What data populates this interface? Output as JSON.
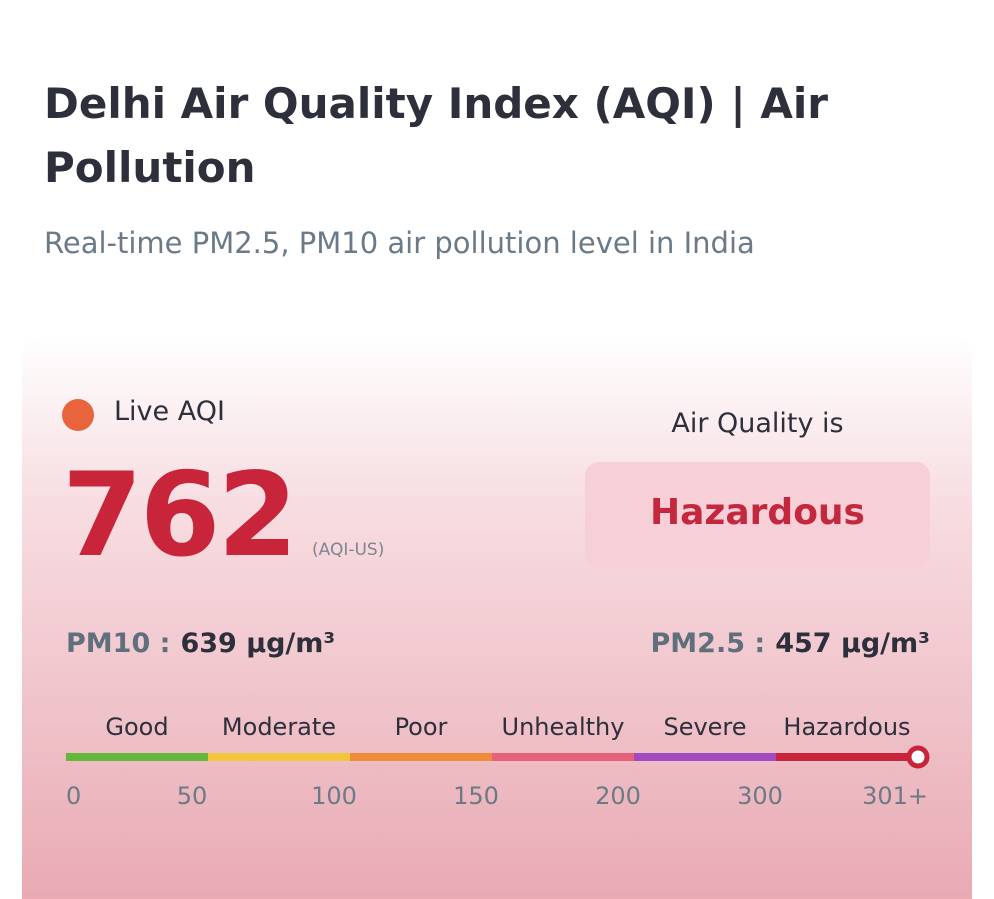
{
  "header": {
    "title": "Delhi Air Quality Index (AQI) | Air Pollution",
    "subtitle": "Real-time PM2.5, PM10 air pollution level in India"
  },
  "card": {
    "live_label": "Live AQI",
    "aqi": 762,
    "aqi_unit": "(AQI-US)",
    "status_label": "Air Quality is",
    "status": "Hazardous",
    "pm10": {
      "label": "PM10 :",
      "value": 639,
      "unit": "µg/m³"
    },
    "pm25": {
      "label": "PM2.5 :",
      "value": 457,
      "unit": "µg/m³"
    },
    "scale": {
      "levels": [
        {
          "name": "Good",
          "color": "#63b83a"
        },
        {
          "name": "Moderate",
          "color": "#f2c63a"
        },
        {
          "name": "Poor",
          "color": "#ef8c3a"
        },
        {
          "name": "Unhealthy",
          "color": "#e8607a"
        },
        {
          "name": "Severe",
          "color": "#a24bc0"
        },
        {
          "name": "Hazardous",
          "color": "#c8253a"
        }
      ],
      "ticks": [
        "0",
        "50",
        "100",
        "150",
        "200",
        "300",
        "301+"
      ]
    }
  }
}
